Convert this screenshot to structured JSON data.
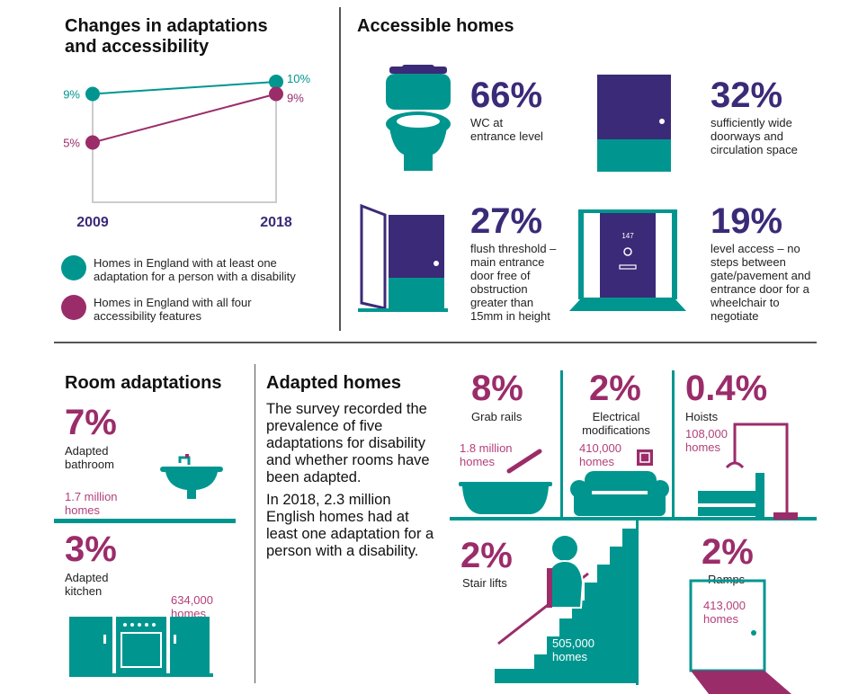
{
  "colors": {
    "teal": "#00968f",
    "purple": "#9b2c6a",
    "navy": "#3b2a78"
  },
  "changes": {
    "title": "Changes in adaptations and accessibility"
  },
  "chart_data": {
    "type": "line",
    "categories": [
      "2009",
      "2018"
    ],
    "series": [
      {
        "name": "Homes in England with at least one adaptation for a person with a disability",
        "values": [
          9,
          10
        ],
        "labels": [
          "9%",
          "10%"
        ],
        "color": "#00968f"
      },
      {
        "name": "Homes in England with all four accessibility features",
        "values": [
          5,
          9
        ],
        "labels": [
          "5%",
          "9%"
        ],
        "color": "#9b2c6a"
      }
    ],
    "legend": "bottom"
  },
  "accessible": {
    "title": "Accessible homes",
    "items": [
      {
        "pct": "66%",
        "label": "WC at entrance level",
        "icon": "toilet-icon"
      },
      {
        "pct": "32%",
        "label": "sufficiently wide doorways and circulation space",
        "icon": "door-icon"
      },
      {
        "pct": "27%",
        "label": "flush threshold – main entrance door free of obstruction greater than 15mm in height",
        "icon": "open-door-icon"
      },
      {
        "pct": "19%",
        "label": "level access – no steps between gate/pavement and entrance door for a wheelchair to negotiate",
        "icon": "front-door-icon",
        "door_number": "147"
      }
    ]
  },
  "room": {
    "title": "Room adaptations",
    "items": [
      {
        "pct": "7%",
        "label": "Adapted bathroom",
        "count": "1.7 million homes",
        "icon": "sink-icon"
      },
      {
        "pct": "3%",
        "label": "Adapted kitchen",
        "count": "634,000 homes",
        "icon": "kitchen-icon"
      }
    ]
  },
  "adapted": {
    "title": "Adapted homes",
    "p1": "The survey recorded the prevalence of five adaptations for disability and whether rooms have been adapted.",
    "p2": "In 2018, 2.3 million English homes had at least one adaptation for a person with a disability.",
    "items": [
      {
        "pct": "8%",
        "label": "Grab rails",
        "count": "1.8 million homes",
        "icon": "bath-grab-rail-icon"
      },
      {
        "pct": "2%",
        "label": "Electrical modifications",
        "count": "410,000 homes",
        "icon": "sofa-socket-icon"
      },
      {
        "pct": "0.4%",
        "label": "Hoists",
        "count": "108,000 homes",
        "icon": "hoist-bed-icon"
      },
      {
        "pct": "2%",
        "label": "Stair lifts",
        "count": "505,000 homes",
        "icon": "stairlift-icon"
      },
      {
        "pct": "2%",
        "label": "Ramps",
        "count": "413,000 homes",
        "icon": "ramp-door-icon"
      }
    ]
  }
}
